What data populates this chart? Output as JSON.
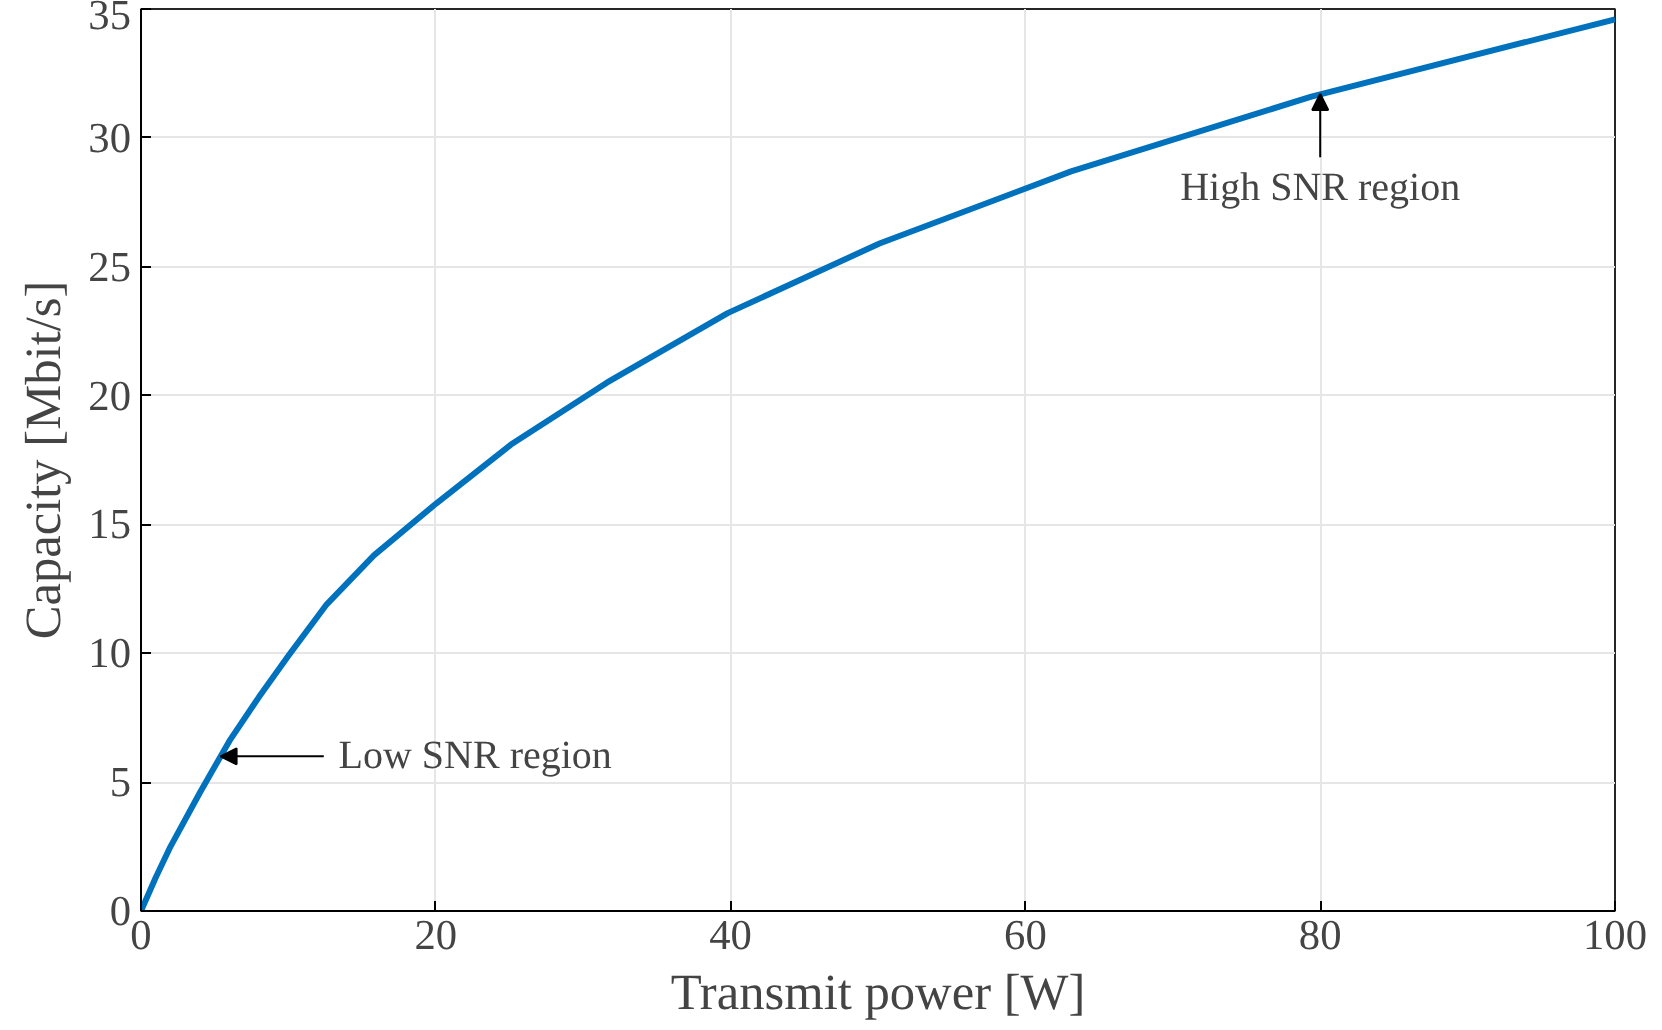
{
  "chart_data": {
    "type": "line",
    "xlabel": "Transmit power [W]",
    "ylabel": "Capacity [Mbit/s]",
    "x": [
      0,
      1,
      2,
      4,
      6,
      8,
      10,
      12.6,
      15.8,
      20,
      25.1,
      31.6,
      39.8,
      50.1,
      63.1,
      79.4,
      100
    ],
    "series": [
      {
        "color": "#0072bd",
        "values": [
          0,
          1.3,
          2.5,
          4.6,
          6.6,
          8.3,
          9.9,
          11.9,
          13.8,
          15.8,
          18.1,
          20.5,
          23.2,
          25.9,
          28.7,
          31.6,
          34.6
        ]
      }
    ],
    "xlim": [
      0,
      100
    ],
    "xticks": [
      0,
      20,
      40,
      60,
      80,
      100
    ],
    "ylim": [
      0,
      35
    ],
    "yticks": [
      0,
      5,
      10,
      15,
      20,
      25,
      30,
      35
    ],
    "grid": true,
    "line_style": "solid",
    "marker": "none",
    "annotations": [
      {
        "text": "Low SNR region",
        "x": 5.4,
        "y": 6
      },
      {
        "text": "High SNR region",
        "x": 80,
        "y": 31.7
      }
    ]
  }
}
